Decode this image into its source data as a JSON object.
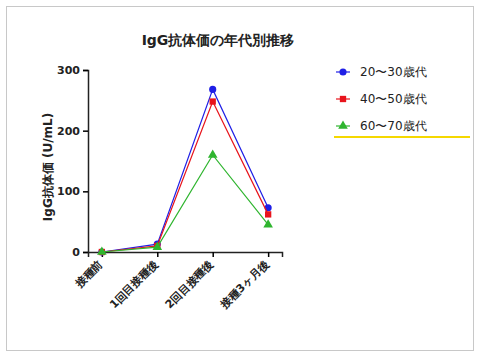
{
  "chart_data": {
    "type": "line",
    "title": "IgG抗体価の年代別推移",
    "y_label": "IgG抗体価 (U/mL)",
    "categories": [
      "接種前",
      "1回目接種後",
      "2回目接種後",
      "接種3ヶ月後"
    ],
    "series": [
      {
        "name": "20〜30歳代",
        "color": "#1f1fe6",
        "marker": "circle",
        "values": [
          0,
          13,
          268,
          73
        ]
      },
      {
        "name": "40〜50歳代",
        "color": "#e8141c",
        "marker": "square",
        "values": [
          0,
          10,
          248,
          62
        ]
      },
      {
        "name": "60〜70歳代",
        "color": "#2fb52f",
        "marker": "triangle",
        "values": [
          0,
          8,
          160,
          45
        ]
      }
    ],
    "ylim": [
      0,
      300
    ],
    "yticks": [
      0,
      100,
      200,
      300
    ],
    "grid": false,
    "legend": "right"
  }
}
